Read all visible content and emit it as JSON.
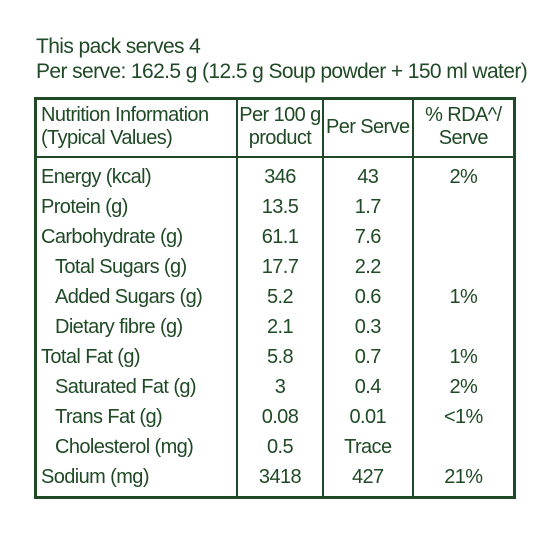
{
  "header": {
    "serves": "This pack serves 4",
    "per_serve": "Per serve: 162.5 g (12.5 g Soup powder + 150 ml water)"
  },
  "table": {
    "headers": {
      "c1_line1": "Nutrition Information",
      "c1_line2": "(Typical Values)",
      "c2_line1": "Per 100 g",
      "c2_line2": "product",
      "c3": "Per Serve",
      "c4_line1": "% RDA^/",
      "c4_line2": "Serve"
    },
    "rows": [
      {
        "name": "Energy (kcal)",
        "per100": "346",
        "perserve": "43",
        "rda": "2%"
      },
      {
        "name": "Protein (g)",
        "per100": "13.5",
        "perserve": "1.7",
        "rda": ""
      },
      {
        "name": "Carbohydrate (g)",
        "per100": "61.1",
        "perserve": "7.6",
        "rda": ""
      },
      {
        "name": "Total Sugars (g)",
        "per100": "17.7",
        "perserve": "2.2",
        "rda": ""
      },
      {
        "name": "Added Sugars (g)",
        "per100": "5.2",
        "perserve": "0.6",
        "rda": "1%"
      },
      {
        "name": "Dietary fibre (g)",
        "per100": "2.1",
        "perserve": "0.3",
        "rda": ""
      },
      {
        "name": "Total Fat (g)",
        "per100": "5.8",
        "perserve": "0.7",
        "rda": "1%"
      },
      {
        "name": "Saturated Fat (g)",
        "per100": "3",
        "perserve": "0.4",
        "rda": "2%"
      },
      {
        "name": "Trans Fat (g)",
        "per100": "0.08",
        "perserve": "0.01",
        "rda": "<1%"
      },
      {
        "name": "Cholesterol (mg)",
        "per100": "0.5",
        "perserve": "Trace",
        "rda": ""
      },
      {
        "name": "Sodium (mg)",
        "per100": "3418",
        "perserve": "427",
        "rda": "21%"
      }
    ]
  },
  "colors": {
    "text": "#1f4a25",
    "border": "#1f4a25",
    "background": "#ffffff"
  }
}
